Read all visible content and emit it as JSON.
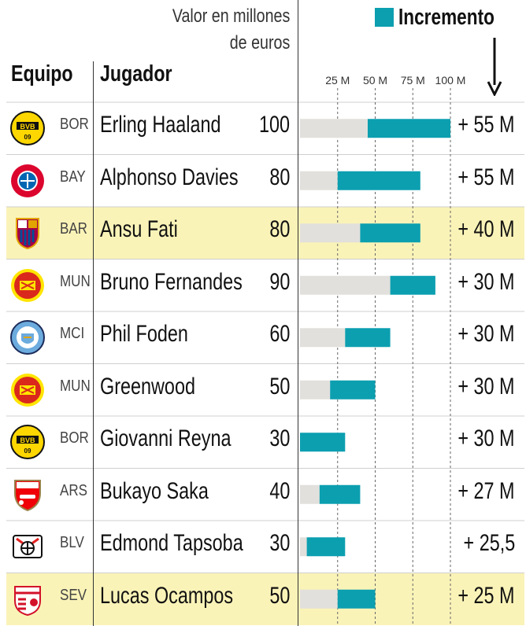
{
  "header": {
    "value_line1": "Valor en millones",
    "value_line2": "de euros",
    "legend_label": "Incremento",
    "col_team": "Equipo",
    "col_player": "Jugador"
  },
  "colors": {
    "base": "#e2e0dc",
    "increment": "#0c9fb0",
    "highlight": "#faf3b8"
  },
  "chart_data": {
    "type": "bar",
    "orientation": "horizontal",
    "stacked": true,
    "title": "",
    "xlabel": "Valor en millones de euros",
    "xlim": [
      0,
      100
    ],
    "ticks": [
      25,
      50,
      75,
      100
    ],
    "tick_labels": [
      "25 M",
      "50 M",
      "75 M",
      "100 M"
    ],
    "legend": [
      "Incremento"
    ],
    "rows": [
      {
        "team": "BOR",
        "badge": "dortmund-badge",
        "player": "Erling Haaland",
        "value": 100,
        "previous": 45,
        "increment": 55,
        "value_label": "100",
        "increment_label": "+ 55 M",
        "highlight": false
      },
      {
        "team": "BAY",
        "badge": "bayern-badge",
        "player": "Alphonso Davies",
        "value": 80,
        "previous": 25,
        "increment": 55,
        "value_label": "80",
        "increment_label": "+ 55 M",
        "highlight": false
      },
      {
        "team": "BAR",
        "badge": "barcelona-badge",
        "player": "Ansu Fati",
        "value": 80,
        "previous": 40,
        "increment": 40,
        "value_label": "80",
        "increment_label": "+ 40 M",
        "highlight": true
      },
      {
        "team": "MUN",
        "badge": "manutd-badge",
        "player": "Bruno Fernandes",
        "value": 90,
        "previous": 60,
        "increment": 30,
        "value_label": "90",
        "increment_label": "+ 30 M",
        "highlight": false
      },
      {
        "team": "MCI",
        "badge": "mancity-badge",
        "player": "Phil Foden",
        "value": 60,
        "previous": 30,
        "increment": 30,
        "value_label": "60",
        "increment_label": "+ 30 M",
        "highlight": false
      },
      {
        "team": "MUN",
        "badge": "manutd-badge",
        "player": "Greenwood",
        "value": 50,
        "previous": 20,
        "increment": 30,
        "value_label": "50",
        "increment_label": "+ 30 M",
        "highlight": false
      },
      {
        "team": "BOR",
        "badge": "dortmund-badge",
        "player": "Giovanni Reyna",
        "value": 30,
        "previous": 0,
        "increment": 30,
        "value_label": "30",
        "increment_label": "+ 30 M",
        "highlight": false
      },
      {
        "team": "ARS",
        "badge": "arsenal-badge",
        "player": "Bukayo Saka",
        "value": 40,
        "previous": 13,
        "increment": 27,
        "value_label": "40",
        "increment_label": "+ 27 M",
        "highlight": false
      },
      {
        "team": "BLV",
        "badge": "leverkusen-badge",
        "player": "Edmond Tapsoba",
        "value": 30,
        "previous": 4.5,
        "increment": 25.5,
        "value_label": "30",
        "increment_label": "+ 25,5",
        "highlight": false
      },
      {
        "team": "SEV",
        "badge": "sevilla-badge",
        "player": "Lucas Ocampos",
        "value": 50,
        "previous": 25,
        "increment": 25,
        "value_label": "50",
        "increment_label": "+ 25 M",
        "highlight": true
      }
    ]
  }
}
